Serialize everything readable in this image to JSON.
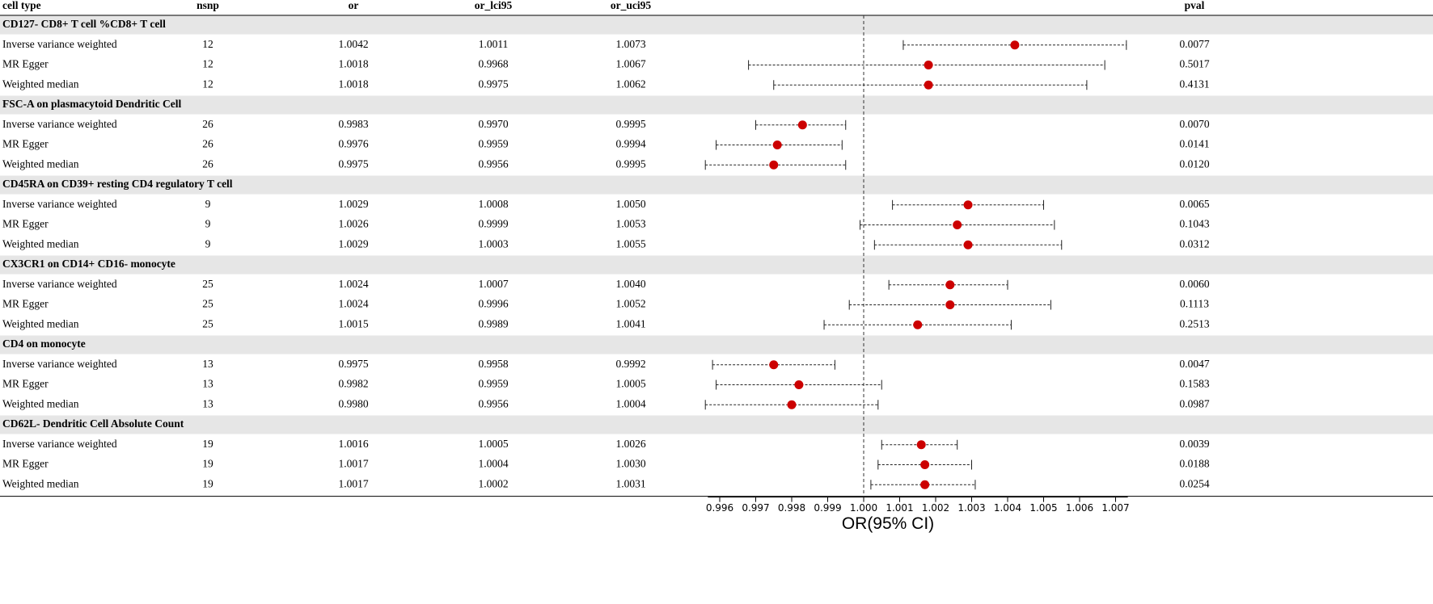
{
  "chart_data": {
    "type": "forest",
    "columns": [
      "cell type",
      "nsnp",
      "or",
      "or_lci95",
      "or_uci95",
      "pval"
    ],
    "groups": [
      {
        "name": "CD127- CD8+ T cell %CD8+ T cell",
        "rows": [
          {
            "method": "Inverse variance weighted",
            "nsnp": 12,
            "or": 1.0042,
            "or_lci95": 1.0011,
            "or_uci95": 1.0073,
            "pval": 0.0077
          },
          {
            "method": "MR Egger",
            "nsnp": 12,
            "or": 1.0018,
            "or_lci95": 0.9968,
            "or_uci95": 1.0067,
            "pval": 0.5017
          },
          {
            "method": "Weighted median",
            "nsnp": 12,
            "or": 1.0018,
            "or_lci95": 0.9975,
            "or_uci95": 1.0062,
            "pval": 0.4131
          }
        ]
      },
      {
        "name": "FSC-A on plasmacytoid Dendritic Cell",
        "rows": [
          {
            "method": "Inverse variance weighted",
            "nsnp": 26,
            "or": 0.9983,
            "or_lci95": {
              "value": 0.997,
              "label": "0.9970"
            },
            "or_uci95": 0.9995,
            "pval": {
              "value": 0.007,
              "label": "0.0070"
            }
          },
          {
            "method": "MR Egger",
            "nsnp": 26,
            "or": 0.9976,
            "or_lci95": 0.9959,
            "or_uci95": 0.9994,
            "pval": 0.0141
          },
          {
            "method": "Weighted median",
            "nsnp": 26,
            "or": 0.9975,
            "or_lci95": 0.9956,
            "or_uci95": 0.9995,
            "pval": {
              "value": 0.012,
              "label": "0.0120"
            }
          }
        ]
      },
      {
        "name": "CD45RA on CD39+ resting CD4 regulatory T cell",
        "rows": [
          {
            "method": "Inverse variance weighted",
            "nsnp": 9,
            "or": 1.0029,
            "or_lci95": 1.0008,
            "or_uci95": {
              "value": 1.005,
              "label": "1.0050"
            },
            "pval": 0.0065
          },
          {
            "method": "MR Egger",
            "nsnp": 9,
            "or": 1.0026,
            "or_lci95": 0.9999,
            "or_uci95": 1.0053,
            "pval": 0.1043
          },
          {
            "method": "Weighted median",
            "nsnp": 9,
            "or": 1.0029,
            "or_lci95": 1.0003,
            "or_uci95": 1.0055,
            "pval": 0.0312
          }
        ]
      },
      {
        "name": "CX3CR1 on CD14+ CD16- monocyte",
        "rows": [
          {
            "method": "Inverse variance weighted",
            "nsnp": 25,
            "or": 1.0024,
            "or_lci95": 1.0007,
            "or_uci95": {
              "value": 1.004,
              "label": "1.0040"
            },
            "pval": {
              "value": 0.006,
              "label": "0.0060"
            }
          },
          {
            "method": "MR Egger",
            "nsnp": 25,
            "or": 1.0024,
            "or_lci95": 0.9996,
            "or_uci95": 1.0052,
            "pval": 0.1113
          },
          {
            "method": "Weighted median",
            "nsnp": 25,
            "or": 1.0015,
            "or_lci95": 0.9989,
            "or_uci95": 1.0041,
            "pval": 0.2513
          }
        ]
      },
      {
        "name": "CD4 on monocyte",
        "rows": [
          {
            "method": "Inverse variance weighted",
            "nsnp": 13,
            "or": 0.9975,
            "or_lci95": 0.9958,
            "or_uci95": 0.9992,
            "pval": 0.0047
          },
          {
            "method": "MR Egger",
            "nsnp": 13,
            "or": 0.9982,
            "or_lci95": 0.9959,
            "or_uci95": 1.0005,
            "pval": 0.1583
          },
          {
            "method": "Weighted median",
            "nsnp": 13,
            "or": {
              "value": 0.998,
              "label": "0.9980"
            },
            "or_lci95": 0.9956,
            "or_uci95": 1.0004,
            "pval": 0.0987
          }
        ]
      },
      {
        "name": "CD62L- Dendritic Cell Absolute Count",
        "rows": [
          {
            "method": "Inverse variance weighted",
            "nsnp": 19,
            "or": 1.0016,
            "or_lci95": 1.0005,
            "or_uci95": 1.0026,
            "pval": 0.0039
          },
          {
            "method": "MR Egger",
            "nsnp": 19,
            "or": 1.0017,
            "or_lci95": 1.0004,
            "or_uci95": {
              "value": 1.003,
              "label": "1.0030"
            },
            "pval": 0.0188
          },
          {
            "method": "Weighted median",
            "nsnp": 19,
            "or": 1.0017,
            "or_lci95": 1.0002,
            "or_uci95": 1.0031,
            "pval": 0.0254
          }
        ]
      }
    ],
    "x_label": "OR(95% CI)",
    "xlim": [
      0.99567,
      1.00734
    ],
    "xticks": [
      0.996,
      0.997,
      0.998,
      0.999,
      {
        "value": 1,
        "label": "1.000"
      },
      1.001,
      1.002,
      1.003,
      1.004,
      1.005,
      1.006,
      1.007
    ],
    "ref_line": 1,
    "color": "#cc0000",
    "band_color": "#e6e6e6"
  }
}
